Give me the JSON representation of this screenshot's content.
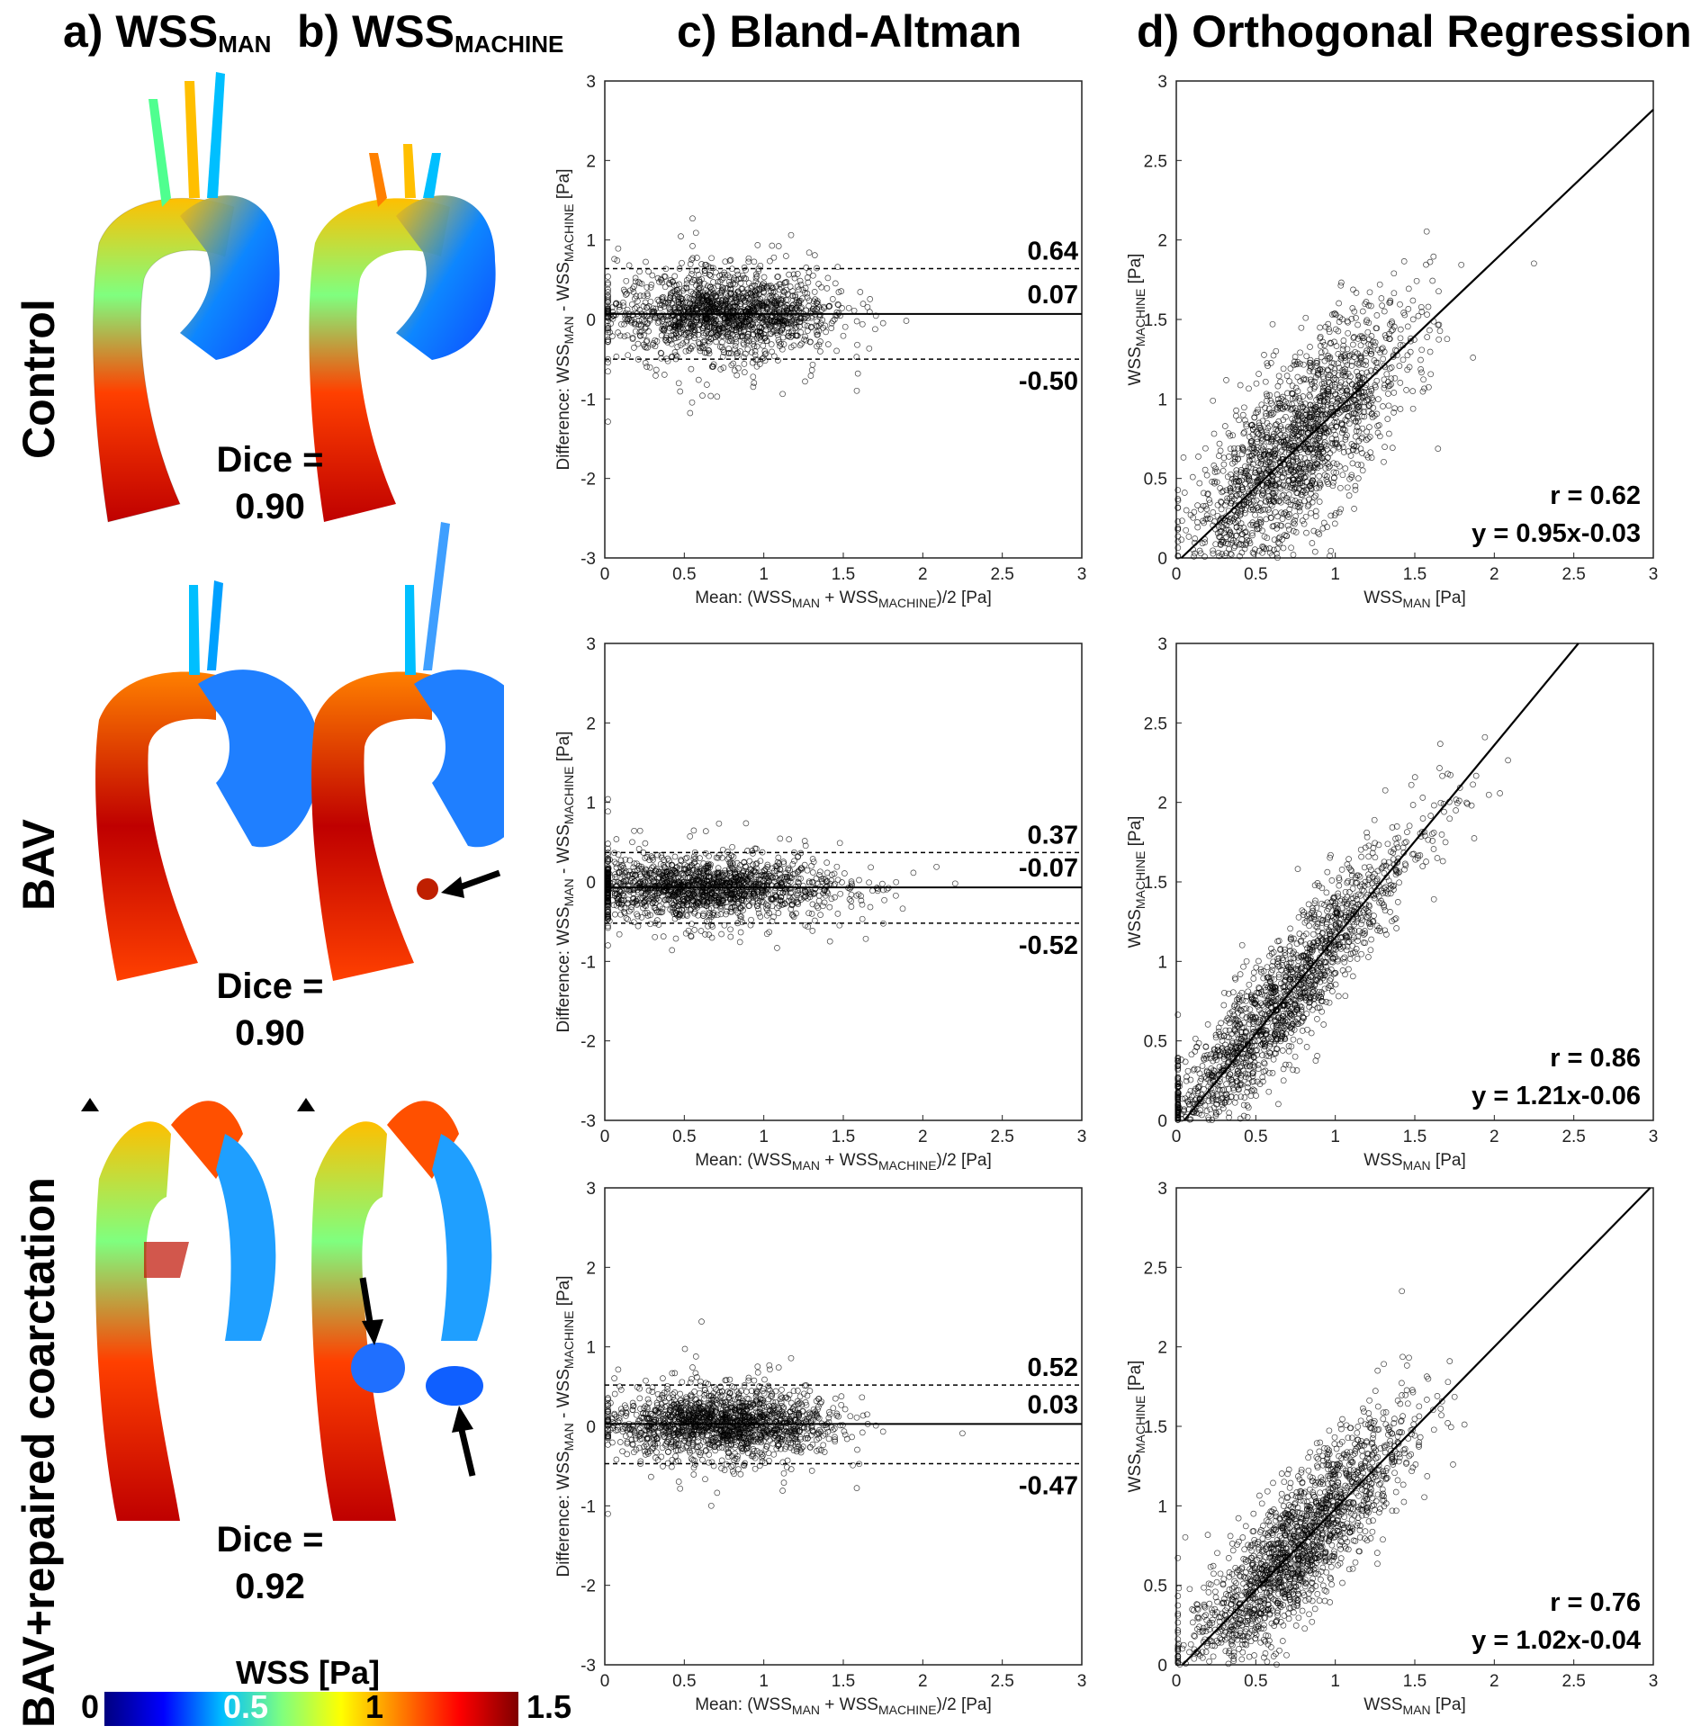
{
  "columns": {
    "a_pre": "a) WSS",
    "a_sub": "MAN",
    "b_pre": "b) WSS",
    "b_sub": "MACHINE",
    "c": "c) Bland-Altman",
    "d": "d) Orthogonal Regression"
  },
  "rows": [
    {
      "label": "Control",
      "dice_label": "Dice =",
      "dice_value": "0.90"
    },
    {
      "label": "BAV",
      "dice_label": "Dice =",
      "dice_value": "0.90"
    },
    {
      "label": "BAV+repaired coarctation",
      "dice_label": "Dice =",
      "dice_value": "0.92"
    }
  ],
  "colorbar": {
    "title": "WSS [Pa]",
    "ticks": [
      "0",
      "0.5",
      "1",
      "1.5"
    ],
    "colormap": [
      "#00007f",
      "#0000ff",
      "#00bfff",
      "#7fff7f",
      "#ffff00",
      "#ff7f00",
      "#ff0000",
      "#7f0000"
    ]
  },
  "chart_data": [
    {
      "type": "scatter",
      "panel": "Bland-Altman",
      "row": "Control",
      "xlabel": {
        "pre": "Mean: (WSS",
        "sub1": "MAN",
        "mid": " + WSS",
        "sub2": "MACHINE",
        "post": ")/2 [Pa]"
      },
      "ylabel": {
        "pre": "Difference: WSS",
        "sub1": "MAN",
        "mid": " - WSS",
        "sub2": "MACHINE",
        "post": " [Pa]"
      },
      "xlim": [
        0,
        3
      ],
      "ylim": [
        -3,
        3
      ],
      "xticks": [
        0,
        0.5,
        1,
        1.5,
        2,
        2.5,
        3
      ],
      "yticks": [
        -3,
        -2,
        -1,
        0,
        1,
        2,
        3
      ],
      "mean_diff": 0.07,
      "upper_loa": 0.64,
      "lower_loa": -0.5,
      "mean_label": "0.07",
      "upper_label": "0.64",
      "lower_label": "-0.50",
      "cloud": {
        "x_center": 0.75,
        "x_spread": 0.35,
        "y_spread": 0.3,
        "n": 1600
      }
    },
    {
      "type": "scatter",
      "panel": "Orthogonal Regression",
      "row": "Control",
      "xlabel": {
        "pre": "WSS",
        "sub1": "MAN",
        "post": " [Pa]"
      },
      "ylabel": {
        "pre": "WSS",
        "sub1": "MACHINE",
        "post": " [Pa]"
      },
      "xlim": [
        0,
        3
      ],
      "ylim": [
        0,
        3
      ],
      "xticks": [
        0,
        0.5,
        1,
        1.5,
        2,
        2.5,
        3
      ],
      "yticks": [
        0,
        0.5,
        1,
        1.5,
        2,
        2.5,
        3
      ],
      "r_label": "r = 0.62",
      "fit_label": "y = 0.95x-0.03",
      "slope": 0.95,
      "intercept": -0.03,
      "cloud": {
        "x_center": 0.75,
        "x_spread": 0.35,
        "noise": 0.28,
        "n": 1800
      }
    },
    {
      "type": "scatter",
      "panel": "Bland-Altman",
      "row": "BAV",
      "xlabel": {
        "pre": "Mean: (WSS",
        "sub1": "MAN",
        "mid": " + WSS",
        "sub2": "MACHINE",
        "post": ")/2 [Pa]"
      },
      "ylabel": {
        "pre": "Difference: WSS",
        "sub1": "MAN",
        "mid": " - WSS",
        "sub2": "MACHINE",
        "post": " [Pa]"
      },
      "xlim": [
        0,
        3
      ],
      "ylim": [
        -3,
        3
      ],
      "xticks": [
        0,
        0.5,
        1,
        1.5,
        2,
        2.5,
        3
      ],
      "yticks": [
        -3,
        -2,
        -1,
        0,
        1,
        2,
        3
      ],
      "mean_diff": -0.07,
      "upper_loa": 0.37,
      "lower_loa": -0.52,
      "mean_label": "-0.07",
      "upper_label": "0.37",
      "lower_label": "-0.52",
      "cloud": {
        "x_center": 0.6,
        "x_spread": 0.45,
        "y_spread": 0.22,
        "n": 1600
      }
    },
    {
      "type": "scatter",
      "panel": "Orthogonal Regression",
      "row": "BAV",
      "xlabel": {
        "pre": "WSS",
        "sub1": "MAN",
        "post": " [Pa]"
      },
      "ylabel": {
        "pre": "WSS",
        "sub1": "MACHINE",
        "post": " [Pa]"
      },
      "xlim": [
        0,
        3
      ],
      "ylim": [
        0,
        3
      ],
      "xticks": [
        0,
        0.5,
        1,
        1.5,
        2,
        2.5,
        3
      ],
      "yticks": [
        0,
        0.5,
        1,
        1.5,
        2,
        2.5,
        3
      ],
      "r_label": "r = 0.86",
      "fit_label": "y = 1.21x-0.06",
      "slope": 1.21,
      "intercept": -0.06,
      "cloud": {
        "x_center": 0.6,
        "x_spread": 0.45,
        "noise": 0.2,
        "n": 1800
      }
    },
    {
      "type": "scatter",
      "panel": "Bland-Altman",
      "row": "BAV+repaired coarctation",
      "xlabel": {
        "pre": "Mean: (WSS",
        "sub1": "MAN",
        "mid": " + WSS",
        "sub2": "MACHINE",
        "post": ")/2 [Pa]"
      },
      "ylabel": {
        "pre": "Difference: WSS",
        "sub1": "MAN",
        "mid": " - WSS",
        "sub2": "MACHINE",
        "post": " [Pa]"
      },
      "xlim": [
        0,
        3
      ],
      "ylim": [
        -3,
        3
      ],
      "xticks": [
        0,
        0.5,
        1,
        1.5,
        2,
        2.5,
        3
      ],
      "yticks": [
        -3,
        -2,
        -1,
        0,
        1,
        2,
        3
      ],
      "mean_diff": 0.03,
      "upper_loa": 0.52,
      "lower_loa": -0.47,
      "mean_label": "0.03",
      "upper_label": "0.52",
      "lower_label": "-0.47",
      "cloud": {
        "x_center": 0.75,
        "x_spread": 0.35,
        "y_spread": 0.25,
        "n": 1600
      }
    },
    {
      "type": "scatter",
      "panel": "Orthogonal Regression",
      "row": "BAV+repaired coarctation",
      "xlabel": {
        "pre": "WSS",
        "sub1": "MAN",
        "post": " [Pa]"
      },
      "ylabel": {
        "pre": "WSS",
        "sub1": "MACHINE",
        "post": " [Pa]"
      },
      "xlim": [
        0,
        3
      ],
      "ylim": [
        0,
        3
      ],
      "xticks": [
        0,
        0.5,
        1,
        1.5,
        2,
        2.5,
        3
      ],
      "yticks": [
        0,
        0.5,
        1,
        1.5,
        2,
        2.5,
        3
      ],
      "r_label": "r = 0.76",
      "fit_label": "y = 1.02x-0.04",
      "slope": 1.02,
      "intercept": -0.04,
      "cloud": {
        "x_center": 0.75,
        "x_spread": 0.35,
        "noise": 0.22,
        "n": 1800
      }
    }
  ]
}
